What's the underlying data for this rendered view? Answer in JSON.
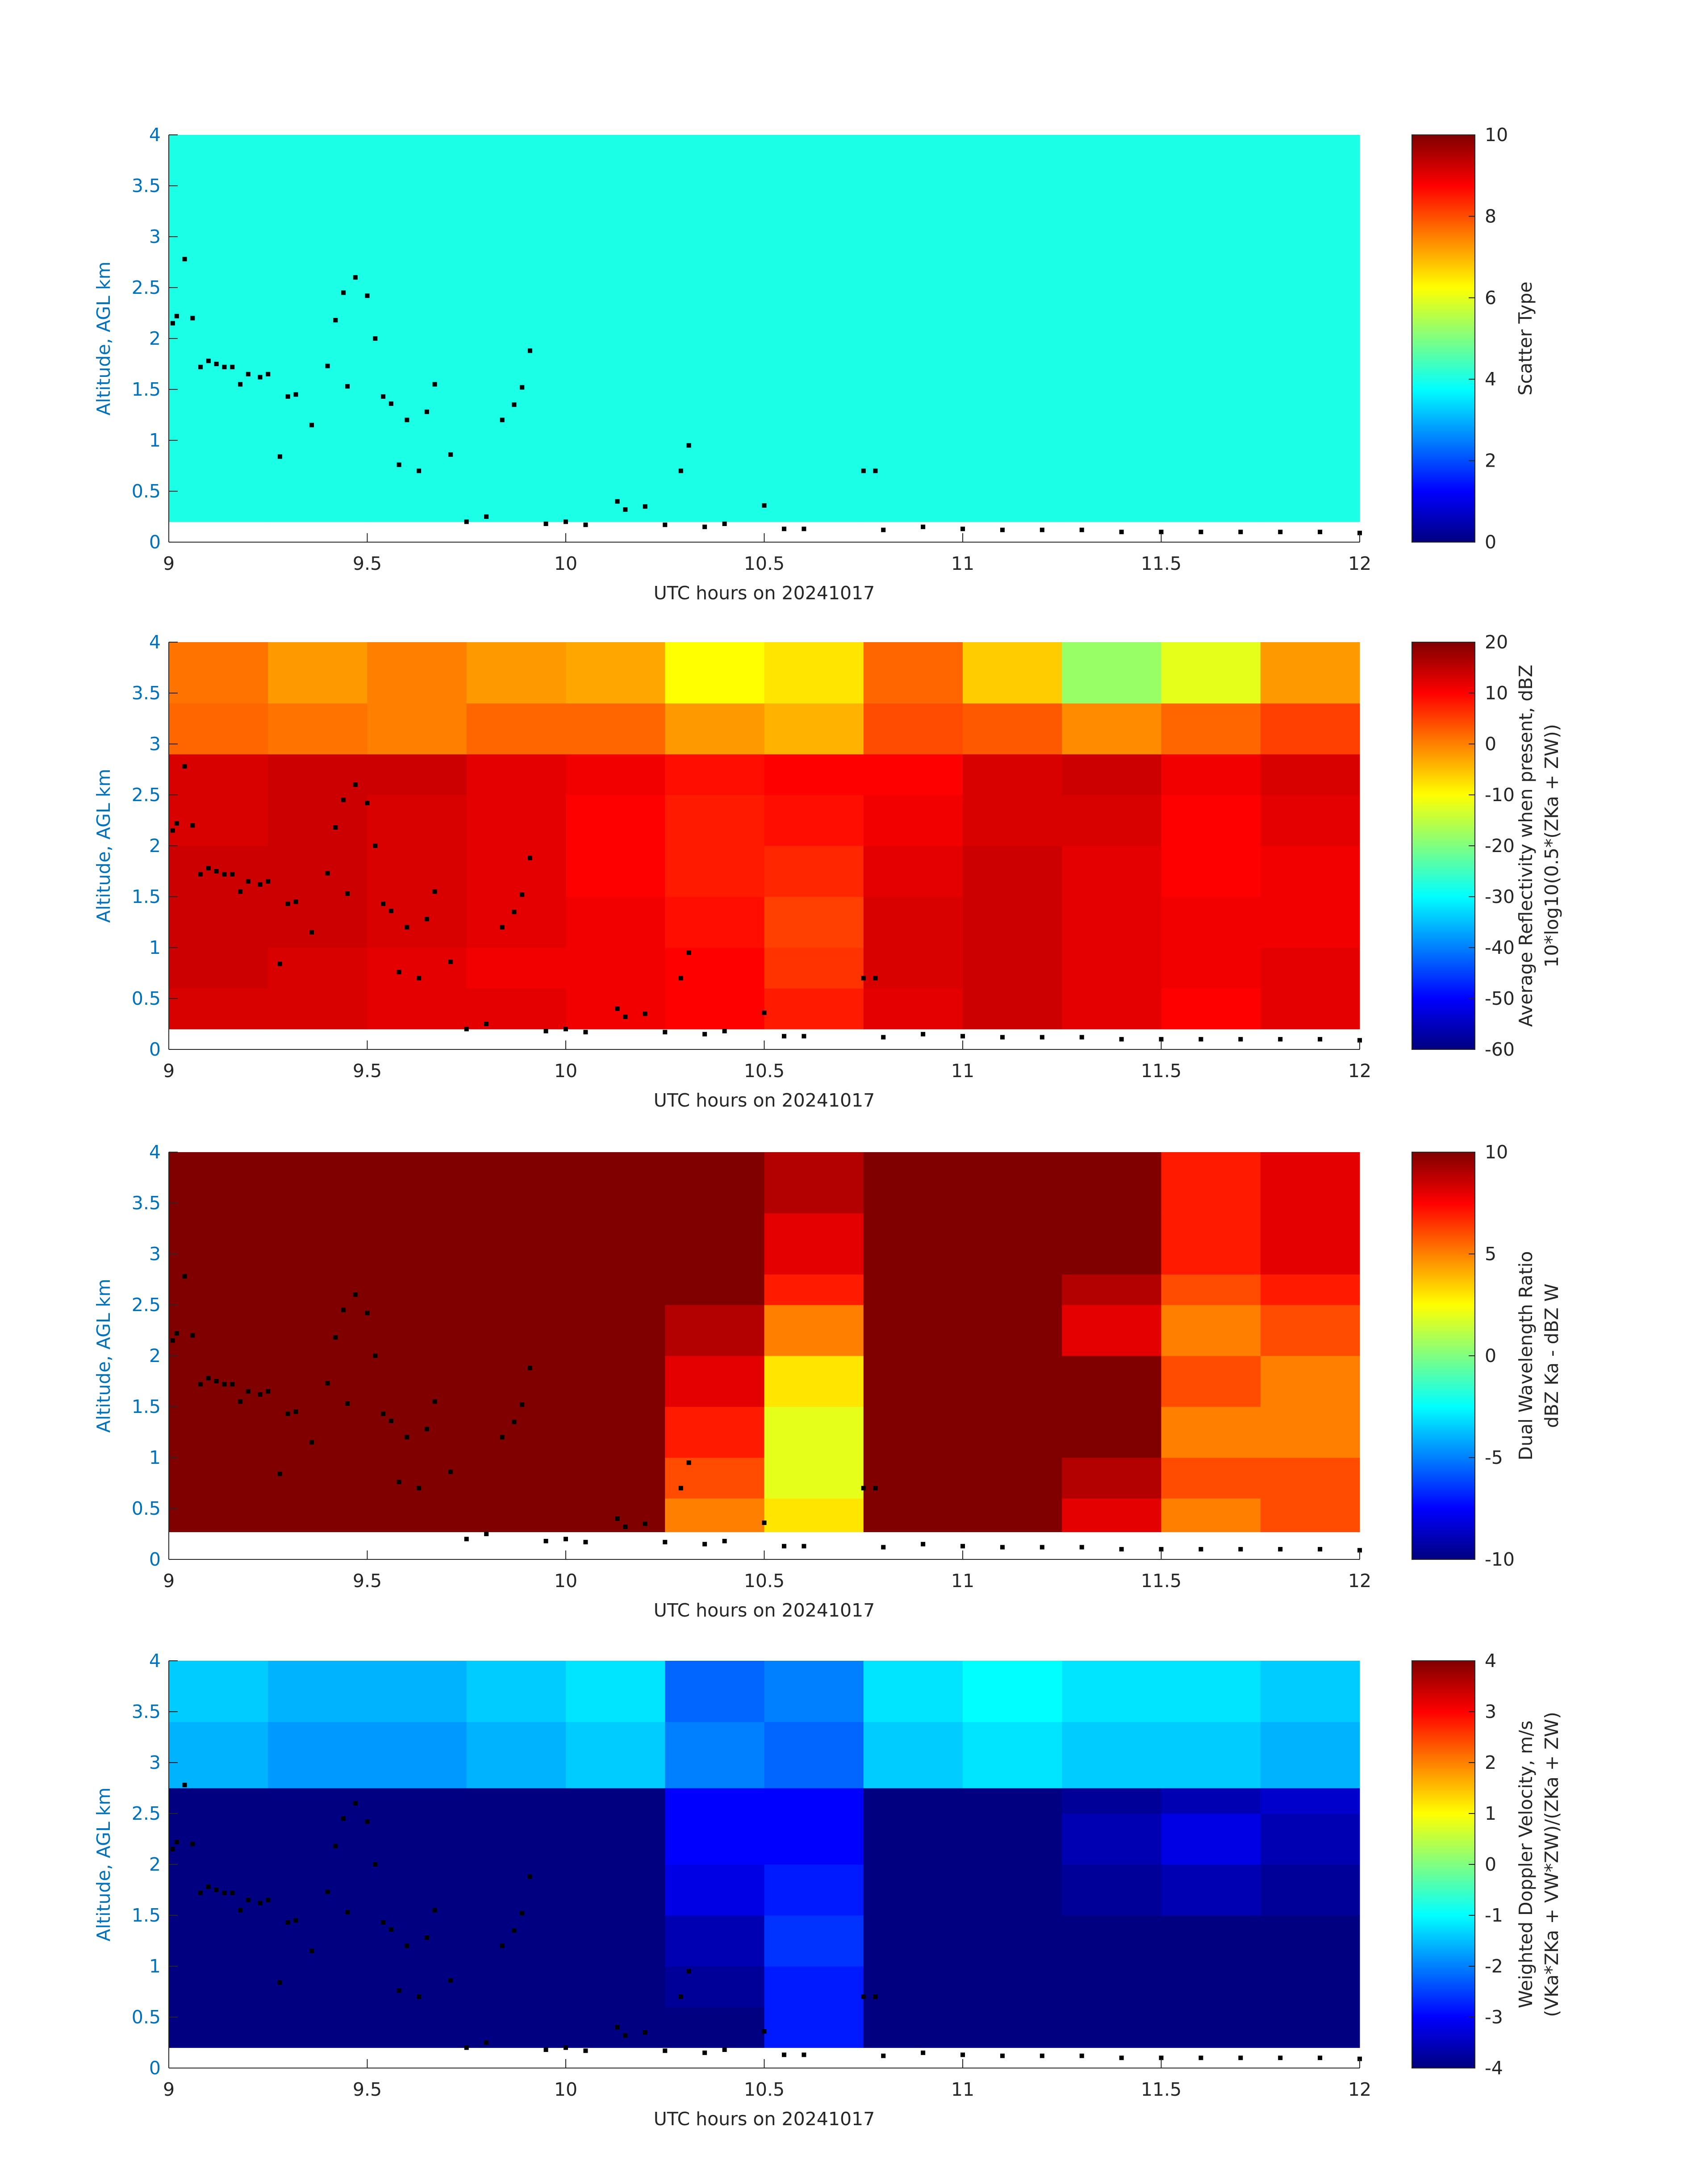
{
  "chart_data": [
    {
      "type": "heatmap",
      "xlabel": "UTC hours on 20241017",
      "ylabel": "Altitude, AGL km",
      "colorbar_label": [
        "Scatter Type"
      ],
      "xlim": [
        9,
        12
      ],
      "xticks": [
        9,
        9.5,
        10,
        10.5,
        11,
        11.5,
        12
      ],
      "ylim": [
        0,
        4
      ],
      "yticks": [
        0,
        0.5,
        1,
        1.5,
        2,
        2.5,
        3,
        3.5,
        4
      ],
      "clim": [
        0,
        10
      ],
      "cticks": [
        0,
        2,
        4,
        6,
        8,
        10
      ],
      "colormap": "jet",
      "x_edges": [
        9,
        9.25,
        9.5,
        9.75,
        10,
        10.25,
        10.5,
        10.75,
        11,
        11.25,
        11.5,
        11.75,
        12
      ],
      "y_edges": [
        0.2,
        0.6,
        1,
        1.5,
        2,
        2.5,
        2.8,
        3.4,
        4
      ],
      "z": [
        [
          4,
          4,
          4,
          4,
          4,
          4,
          4,
          4,
          4,
          4,
          4,
          4
        ],
        [
          4,
          4,
          4,
          4,
          4,
          4,
          4,
          4,
          4,
          4,
          4,
          4
        ],
        [
          4,
          4,
          4,
          4,
          4,
          4,
          4,
          4,
          4,
          4,
          4,
          4
        ],
        [
          4,
          4,
          4,
          4,
          4,
          4,
          4,
          4,
          4,
          4,
          4,
          4
        ],
        [
          4,
          4,
          4,
          4,
          4,
          4,
          4,
          4,
          4,
          4,
          4,
          4
        ],
        [
          4,
          4,
          4,
          4,
          4,
          4,
          4,
          4,
          4,
          4,
          4,
          4
        ],
        [
          4,
          4,
          4,
          4,
          4,
          4,
          4,
          4,
          4,
          4,
          4,
          4
        ],
        [
          4,
          4,
          4,
          4,
          4,
          4,
          4,
          4,
          4,
          4,
          4,
          4
        ]
      ]
    },
    {
      "type": "heatmap",
      "xlabel": "UTC hours on 20241017",
      "ylabel": "Altitude, AGL km",
      "colorbar_label": [
        "Average Reflectivity when present, dBZ",
        "10*log10(0.5*(ZKa + ZW))"
      ],
      "xlim": [
        9,
        12
      ],
      "xticks": [
        9,
        9.5,
        10,
        10.5,
        11,
        11.5,
        12
      ],
      "ylim": [
        0,
        4
      ],
      "yticks": [
        0,
        0.5,
        1,
        1.5,
        2,
        2.5,
        3,
        3.5,
        4
      ],
      "clim": [
        -60,
        20
      ],
      "cticks": [
        -60,
        -50,
        -40,
        -30,
        -20,
        -10,
        0,
        10,
        20
      ],
      "colormap": "jet",
      "x_edges": [
        9,
        9.25,
        9.5,
        9.75,
        10,
        10.25,
        10.5,
        10.75,
        11,
        11.25,
        11.5,
        11.75,
        12
      ],
      "y_edges": [
        0.2,
        0.6,
        1,
        1.5,
        2,
        2.5,
        2.9,
        3.4,
        4
      ],
      "z": [
        [
          13,
          13,
          12,
          12,
          11,
          10,
          8,
          12,
          14,
          12,
          10,
          12
        ],
        [
          14,
          13,
          12,
          11,
          11,
          10,
          6,
          13,
          14,
          12,
          11,
          12
        ],
        [
          14,
          14,
          13,
          12,
          11,
          9,
          5,
          13,
          14,
          12,
          11,
          11
        ],
        [
          14,
          14,
          13,
          12,
          10,
          8,
          7,
          12,
          14,
          12,
          10,
          11
        ],
        [
          13,
          14,
          13,
          12,
          10,
          8,
          9,
          11,
          13,
          13,
          10,
          12
        ],
        [
          13,
          14,
          14,
          12,
          11,
          9,
          10,
          10,
          13,
          14,
          11,
          13
        ],
        [
          2,
          1,
          0,
          2,
          2,
          -2,
          -4,
          4,
          3,
          -1,
          2,
          5
        ],
        [
          1,
          -2,
          0,
          -2,
          -3,
          -10,
          -8,
          2,
          -6,
          -18,
          -12,
          -2
        ]
      ]
    },
    {
      "type": "heatmap",
      "xlabel": "UTC hours on 20241017",
      "ylabel": "Altitude, AGL km",
      "colorbar_label": [
        "Dual Wavelength Ratio",
        "dBZ Ka - dBZ W"
      ],
      "xlim": [
        9,
        12
      ],
      "xticks": [
        9,
        9.5,
        10,
        10.5,
        11,
        11.5,
        12
      ],
      "ylim": [
        0,
        4
      ],
      "yticks": [
        0,
        0.5,
        1,
        1.5,
        2,
        2.5,
        3,
        3.5,
        4
      ],
      "clim": [
        -10,
        10
      ],
      "cticks": [
        -10,
        -5,
        0,
        5,
        10
      ],
      "colormap": "jet",
      "x_edges": [
        9,
        9.25,
        9.5,
        9.75,
        10,
        10.25,
        10.5,
        10.75,
        11,
        11.25,
        11.5,
        11.75,
        12
      ],
      "y_edges": [
        0.27,
        0.6,
        1,
        1.5,
        2,
        2.5,
        2.8,
        3.4,
        4
      ],
      "z": [
        [
          10,
          10,
          10,
          10,
          10,
          5,
          3,
          10,
          10,
          8,
          5,
          6
        ],
        [
          10,
          10,
          10,
          10,
          10,
          6,
          2,
          10,
          10,
          9,
          6,
          6
        ],
        [
          10,
          10,
          10,
          10,
          10,
          7,
          2,
          10,
          10,
          10,
          5,
          5
        ],
        [
          10,
          10,
          10,
          10,
          10,
          8,
          3,
          10,
          10,
          10,
          6,
          5
        ],
        [
          10,
          10,
          10,
          10,
          10,
          9,
          5,
          10,
          10,
          8,
          5,
          6
        ],
        [
          10,
          10,
          10,
          10,
          10,
          10,
          7,
          10,
          10,
          9,
          6,
          7
        ],
        [
          10,
          10,
          10,
          10,
          10,
          10,
          8,
          10,
          10,
          10,
          7,
          8
        ],
        [
          10,
          10,
          10,
          10,
          10,
          10,
          9,
          10,
          10,
          10,
          7,
          8
        ]
      ]
    },
    {
      "type": "heatmap",
      "xlabel": "UTC hours on 20241017",
      "ylabel": "Altitude, AGL km",
      "colorbar_label": [
        "Weighted Doppler Velocity, m/s",
        "(VKa*ZKa + VW*ZW)/(ZKa + ZW)"
      ],
      "xlim": [
        9,
        12
      ],
      "xticks": [
        9,
        9.5,
        10,
        10.5,
        11,
        11.5,
        12
      ],
      "ylim": [
        0,
        4
      ],
      "yticks": [
        0,
        0.5,
        1,
        1.5,
        2,
        2.5,
        3,
        3.5,
        4
      ],
      "clim": [
        -4,
        4
      ],
      "cticks": [
        -4,
        -3,
        -2,
        -1,
        0,
        1,
        2,
        3,
        4
      ],
      "colormap": "jet",
      "x_edges": [
        9,
        9.25,
        9.5,
        9.75,
        10,
        10.25,
        10.5,
        10.75,
        11,
        11.25,
        11.5,
        11.75,
        12
      ],
      "y_edges": [
        0.2,
        0.6,
        1,
        1.5,
        2,
        2.5,
        2.75,
        3.4,
        4
      ],
      "z": [
        [
          -4,
          -4,
          -4,
          -4,
          -4,
          -4,
          -2.8,
          -4,
          -4,
          -4,
          -4,
          -4
        ],
        [
          -4,
          -4,
          -4,
          -4,
          -4,
          -3.8,
          -2.8,
          -4,
          -4,
          -4,
          -4,
          -4
        ],
        [
          -4,
          -4,
          -4,
          -4,
          -4,
          -3.6,
          -2.6,
          -4,
          -4,
          -4,
          -4,
          -4
        ],
        [
          -4,
          -4,
          -4,
          -4,
          -4,
          -3.2,
          -2.8,
          -4,
          -4,
          -3.8,
          -3.6,
          -3.8
        ],
        [
          -4,
          -4,
          -4,
          -4,
          -4,
          -3,
          -3,
          -4,
          -4,
          -3.6,
          -3.2,
          -3.6
        ],
        [
          -4,
          -4,
          -4,
          -4,
          -4,
          -3,
          -3,
          -4,
          -4,
          -3.8,
          -3.6,
          -3.4
        ],
        [
          -1.6,
          -1.8,
          -1.8,
          -1.6,
          -1.4,
          -2,
          -2.2,
          -1.4,
          -1.2,
          -1.4,
          -1.4,
          -1.6
        ],
        [
          -1.4,
          -1.6,
          -1.6,
          -1.4,
          -1.2,
          -2.2,
          -2,
          -1.2,
          -1,
          -1.2,
          -1.2,
          -1.4
        ]
      ]
    }
  ],
  "points": {
    "x": [
      9.01,
      9.02,
      9.04,
      9.06,
      9.08,
      9.1,
      9.12,
      9.14,
      9.16,
      9.18,
      9.2,
      9.23,
      9.25,
      9.28,
      9.3,
      9.32,
      9.36,
      9.4,
      9.42,
      9.44,
      9.45,
      9.47,
      9.5,
      9.52,
      9.54,
      9.56,
      9.58,
      9.6,
      9.63,
      9.65,
      9.67,
      9.71,
      9.75,
      9.8,
      9.84,
      9.87,
      9.89,
      9.91,
      9.95,
      10.0,
      10.05,
      10.13,
      10.15,
      10.2,
      10.25,
      10.29,
      10.31,
      10.35,
      10.4,
      10.5,
      10.55,
      10.6,
      10.75,
      10.78,
      10.8,
      10.9,
      11,
      11.1,
      11.2,
      11.3,
      11.4,
      11.5,
      11.6,
      11.7,
      11.8,
      11.9,
      12
    ],
    "y": [
      2.15,
      2.22,
      2.78,
      2.2,
      1.72,
      1.78,
      1.75,
      1.72,
      1.72,
      1.55,
      1.65,
      1.62,
      1.65,
      0.84,
      1.43,
      1.45,
      1.15,
      1.73,
      2.18,
      2.45,
      1.53,
      2.6,
      2.42,
      2.0,
      1.43,
      1.36,
      0.76,
      1.2,
      0.7,
      1.28,
      1.55,
      0.86,
      0.2,
      0.25,
      1.2,
      1.35,
      1.52,
      1.88,
      0.18,
      0.2,
      0.17,
      0.4,
      0.32,
      0.35,
      0.17,
      0.7,
      0.95,
      0.15,
      0.18,
      0.36,
      0.13,
      0.13,
      0.7,
      0.7,
      0.12,
      0.15,
      0.13,
      0.12,
      0.12,
      0.12,
      0.1,
      0.1,
      0.1,
      0.1,
      0.1,
      0.1,
      0.09
    ]
  }
}
